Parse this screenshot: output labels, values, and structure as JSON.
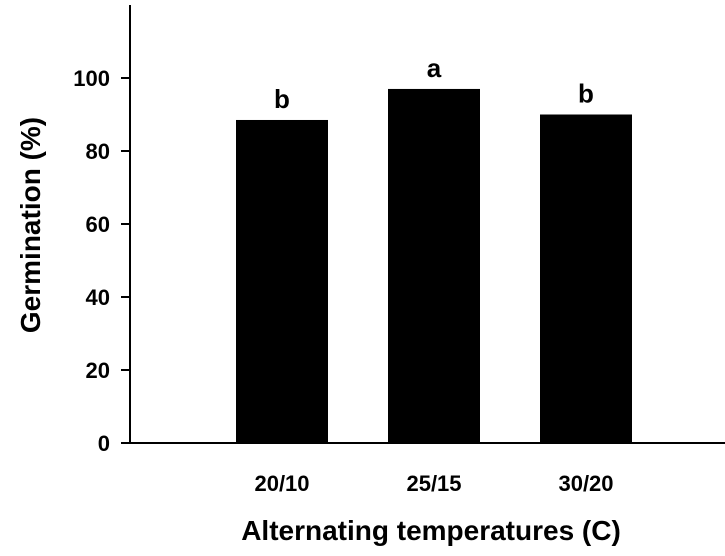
{
  "chart_data": {
    "type": "bar",
    "categories": [
      "20/10",
      "25/15",
      "30/20"
    ],
    "values": [
      88.5,
      97,
      90
    ],
    "value_labels": [
      "b",
      "a",
      "b"
    ],
    "xlabel": "Alternating temperatures (C)",
    "ylabel": "Germination (%)",
    "ylim": [
      0,
      120
    ],
    "yticks": [
      0,
      20,
      40,
      60,
      80,
      100
    ],
    "grid": false,
    "bar_color": "#000000",
    "axis_color": "#000000"
  }
}
